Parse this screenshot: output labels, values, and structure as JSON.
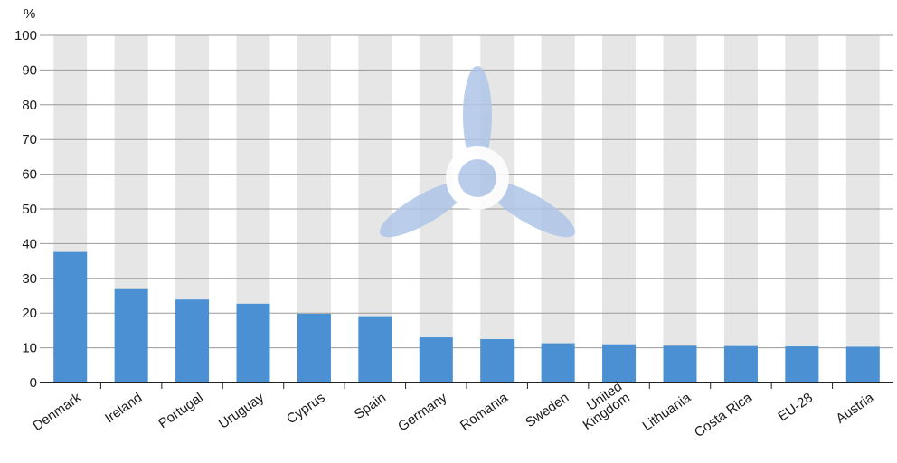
{
  "chart_data": {
    "type": "bar",
    "unit_label": "%",
    "categories": [
      [
        "Denmark"
      ],
      [
        "Ireland"
      ],
      [
        "Portugal"
      ],
      [
        "Uruguay"
      ],
      [
        "Cyprus"
      ],
      [
        "Spain"
      ],
      [
        "Germany"
      ],
      [
        "Romania"
      ],
      [
        "Sweden"
      ],
      [
        "United",
        "Kingdom"
      ],
      [
        "Lithuania"
      ],
      [
        "Costa Rica"
      ],
      [
        "EU-28"
      ],
      [
        "Austria"
      ]
    ],
    "values": [
      37.6,
      26.9,
      23.9,
      22.7,
      19.8,
      19.1,
      13.0,
      12.5,
      11.3,
      11.0,
      10.6,
      10.5,
      10.4,
      10.3
    ],
    "ylim": [
      0,
      100
    ],
    "yticks": [
      0,
      10,
      20,
      30,
      40,
      50,
      60,
      70,
      80,
      90,
      100
    ],
    "grid": true,
    "legend": "none",
    "colors": {
      "bar": "#4a90d2",
      "band": "#e6e6e6",
      "grid": "#9a9a9a",
      "axis": "#222222",
      "turbine": "#aec6e8"
    },
    "decoration_icon": "wind-turbine-icon"
  }
}
